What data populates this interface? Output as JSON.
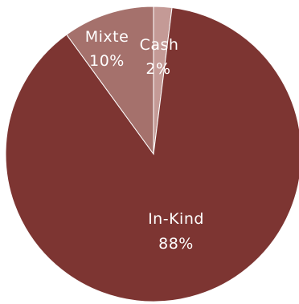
{
  "chart_data": {
    "type": "pie",
    "slices": [
      {
        "label": "Cash",
        "percent_label": "2%",
        "value": 2,
        "color": "#C49A96"
      },
      {
        "label": "In-Kind",
        "percent_label": "88%",
        "value": 88,
        "color": "#7D3532"
      },
      {
        "label": "Mixte",
        "percent_label": "10%",
        "value": 10,
        "color": "#A5716C"
      }
    ],
    "start_angle_deg": 0,
    "direction": "clockwise",
    "legend": "none",
    "slice_border_color": "#ffffff"
  }
}
